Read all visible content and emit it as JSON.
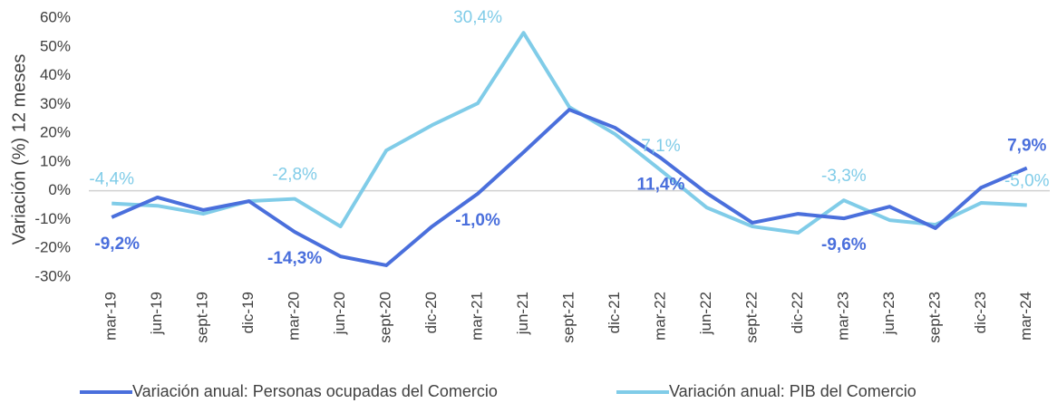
{
  "chart_data": {
    "type": "line",
    "y_label": "Variación (%) 12 meses",
    "categories": [
      "mar-19",
      "jun-19",
      "sept-19",
      "dic-19",
      "mar-20",
      "jun-20",
      "sept-20",
      "dic-20",
      "mar-21",
      "jun-21",
      "sept-21",
      "dic-21",
      "mar-22",
      "jun-22",
      "sept-22",
      "dic-22",
      "mar-23",
      "jun-23",
      "sept-23",
      "dic-23",
      "mar-24"
    ],
    "series": [
      {
        "name": "Variación anual: Personas ocupadas del Comercio",
        "color": "#4a6fdc",
        "values": [
          -9.2,
          -2.3,
          -6.7,
          -3.6,
          -14.3,
          -22.8,
          -25.9,
          -12.4,
          -1.0,
          13.4,
          28.2,
          21.9,
          11.4,
          -0.8,
          -11.1,
          -8.0,
          -9.6,
          -5.5,
          -13.0,
          1.1,
          7.9
        ],
        "value_labels": [
          "-9,2%",
          null,
          null,
          null,
          "-14,3%",
          null,
          null,
          null,
          "-1,0%",
          null,
          null,
          null,
          "11,4%",
          null,
          null,
          null,
          "-9,6%",
          null,
          null,
          null,
          "7,9%"
        ]
      },
      {
        "name": "Variación anual: PIB del Comercio",
        "color": "#80cce8",
        "values": [
          -4.4,
          -5.2,
          -8.0,
          -3.6,
          -2.8,
          -12.4,
          14.0,
          22.8,
          30.4,
          54.9,
          29.1,
          19.7,
          7.1,
          -5.8,
          -12.4,
          -14.6,
          -3.3,
          -10.2,
          -11.8,
          -4.2,
          -5.0
        ],
        "value_labels": [
          "-4,4%",
          null,
          null,
          null,
          "-2,8%",
          null,
          null,
          null,
          "30,4%",
          null,
          null,
          null,
          "7,1%",
          null,
          null,
          null,
          "-3,3%",
          null,
          null,
          null,
          "-5,0%"
        ]
      }
    ],
    "ylim": [
      -30,
      60
    ],
    "yticks": [
      {
        "value": -30,
        "label": "-30%"
      },
      {
        "value": -20,
        "label": "-20%"
      },
      {
        "value": -10,
        "label": "-10%"
      },
      {
        "value": 0,
        "label": "0%"
      },
      {
        "value": 10,
        "label": "10%"
      },
      {
        "value": 20,
        "label": "20%"
      },
      {
        "value": 30,
        "label": "30%"
      },
      {
        "value": 40,
        "label": "40%"
      },
      {
        "value": 50,
        "label": "50%"
      },
      {
        "value": 60,
        "label": "60%"
      }
    ],
    "legend": "bottom"
  }
}
